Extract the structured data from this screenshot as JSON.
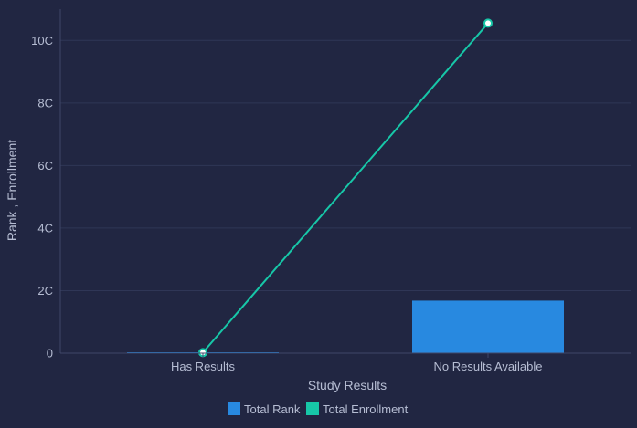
{
  "chart_data": {
    "type": "bar",
    "categories": [
      "Has Results",
      "No Results Available"
    ],
    "series": [
      {
        "name": "Total Rank",
        "type": "bar",
        "values": [
          0.02,
          1.68
        ]
      },
      {
        "name": "Total Enrollment",
        "type": "line",
        "values": [
          0.02,
          10.55
        ]
      }
    ],
    "xlabel": "Study Results",
    "ylabel": "Rank , Enrollment",
    "ylim": [
      0,
      11
    ],
    "yticks": [
      0,
      2,
      4,
      6,
      8,
      10
    ],
    "ytick_labels": [
      "0",
      "2C",
      "4C",
      "6C",
      "8C",
      "10C"
    ],
    "grid": true,
    "legend_position": "bottom-center",
    "colors": {
      "background": "#212642",
      "grid": "#2f3656",
      "axis": "#3f4768",
      "text": "#b6bdd3",
      "Total Rank": "#2889e0",
      "Total Enrollment": "#17c7a8"
    }
  }
}
